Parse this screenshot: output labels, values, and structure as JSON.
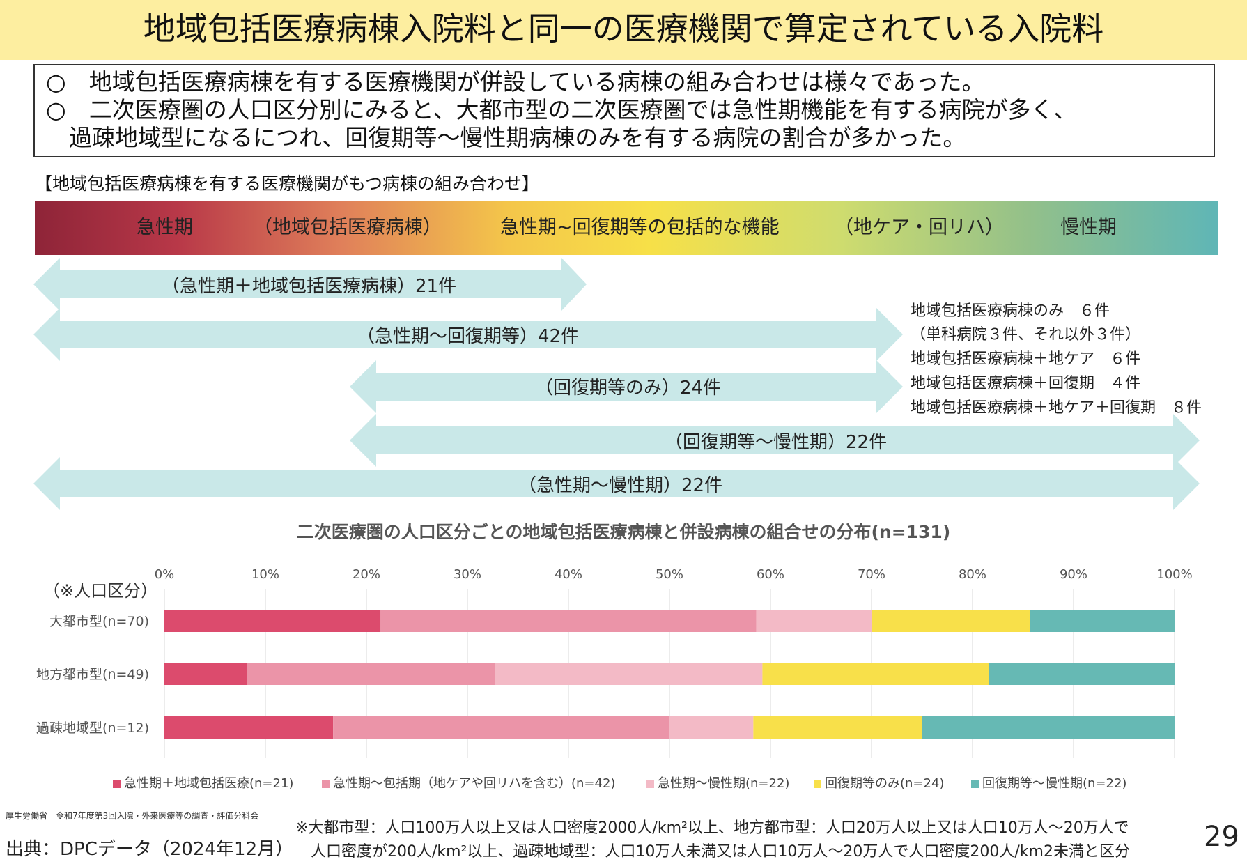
{
  "title": "地域包括医療病棟入院料と同一の医療機関で算定されている入院料",
  "summary": [
    "○　地域包括医療病棟を有する医療機関が併設している病棟の組み合わせは様々であった。",
    "○　二次医療圏の人口区分別にみると、大都市型の二次医療圏では急性期機能を有する病院が多く、",
    "　過疎地域型になるにつれ、回復期等～慢性期病棟のみを有する病院の割合が多かった。"
  ],
  "section_label": "【地域包括医療病棟を有する医療機関がもつ病棟の組み合わせ】",
  "gradient_labels": [
    "急性期",
    "（地域包括医療病棟）",
    "急性期~回復期等の包括的な機能",
    "（地ケア・回リハ）",
    "慢性期"
  ],
  "arrows": [
    {
      "label": "（急性期＋地域包括医療病棟）21件"
    },
    {
      "label": "（急性期～回復期等）42件"
    },
    {
      "label": "（回復期等のみ）24件"
    },
    {
      "label": "（回復期等～慢性期）22件"
    },
    {
      "label": "（急性期～慢性期）22件"
    }
  ],
  "notes": [
    "地域包括医療病棟のみ　６件",
    "（単科病院３件、それ以外３件）",
    "地域包括医療病棟＋地ケア　６件",
    "地域包括医療病棟＋回復期　４件",
    "地域包括医療病棟＋地ケア＋回復期　８件"
  ],
  "colors": {
    "title_bg": "#fdeea0",
    "arrow": "#c9e8e8",
    "series": [
      "#dc4b6d",
      "#eb94a8",
      "#f3bac6",
      "#f8e04a",
      "#66b9b4"
    ]
  },
  "axis_unit": "（※人口区分）",
  "chart_data": {
    "type": "bar",
    "orientation": "horizontal",
    "stacked": true,
    "title": "二次医療圏の人口区分ごとの地域包括医療病棟と併設病棟の組合せの分布(n=131)",
    "categories": [
      "大都市型(n=70)",
      "地方都市型(n=49)",
      "過疎地域型(n=12)"
    ],
    "xticks": [
      "0%",
      "10%",
      "20%",
      "30%",
      "40%",
      "50%",
      "60%",
      "70%",
      "80%",
      "90%",
      "100%"
    ],
    "xlim": [
      0,
      100
    ],
    "grid": true,
    "legend_position": "bottom",
    "series": [
      {
        "name": "急性期＋地域包括医療(n=21)",
        "values": [
          21.4,
          8.2,
          16.7
        ]
      },
      {
        "name": "急性期～包括期（地ケアや回リハを含む）(n=42)",
        "values": [
          37.2,
          24.5,
          33.3
        ]
      },
      {
        "name": "急性期～慢性期(n=22)",
        "values": [
          11.4,
          26.5,
          8.3
        ]
      },
      {
        "name": "回復期等のみ(n=24)",
        "values": [
          15.7,
          22.4,
          16.7
        ]
      },
      {
        "name": "回復期等～慢性期(n=22)",
        "values": [
          14.3,
          18.4,
          25.0
        ]
      }
    ]
  },
  "org_line": "厚生労働省　令和7年度第3回入院・外来医療等の調査・評価分科会",
  "source": "出典：DPCデータ（2024年12月）",
  "footnote": [
    "※大都市型：人口100万人以上又は人口密度2000人/km²以上、地方都市型：人口20万人以上又は人口10万人～20万人で",
    "　人口密度が200人/km²以上、過疎地域型：人口10万人未満又は人口10万人～20万人で人口密度200人/km2未満と区分"
  ],
  "page_number": "29"
}
